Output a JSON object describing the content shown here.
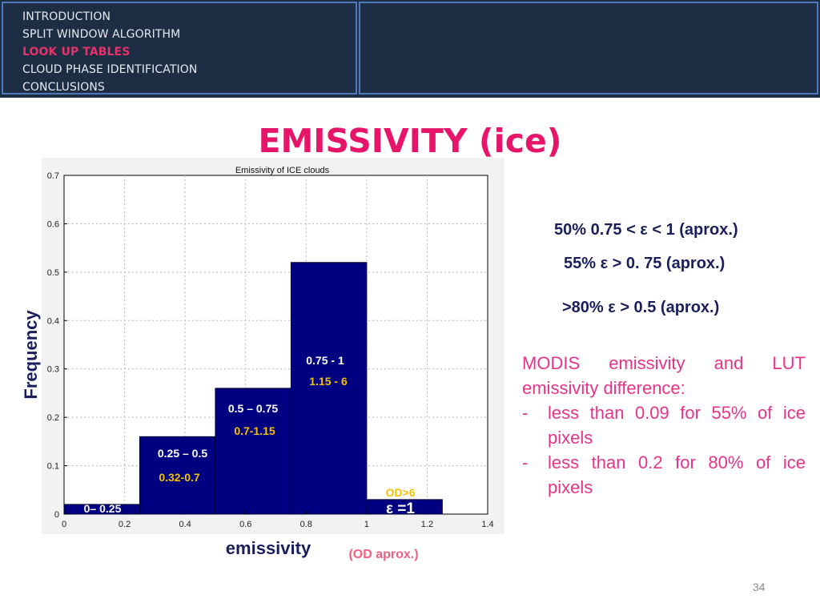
{
  "nav": {
    "items": [
      {
        "label": "INTRODUCTION",
        "active": false
      },
      {
        "label": "SPLIT WINDOW ALGORITHM",
        "active": false
      },
      {
        "label": "LOOK UP TABLES",
        "active": true
      },
      {
        "label": "CLOUD PHASE IDENTIFICATION",
        "active": false
      },
      {
        "label": "CONCLUSIONS",
        "active": false
      }
    ]
  },
  "slide": {
    "title": "EMISSIVITY (ice)",
    "page_number": "34"
  },
  "stats": [
    "50%  0.75 < ε < 1 (aprox.)",
    "55% ε > 0. 75 (aprox.)",
    ">80% ε > 0.5 (aprox.)"
  ],
  "modis": {
    "intro_line1": "MODIS emissivity and LUT",
    "intro_line2": "emissivity difference:",
    "bullets": [
      {
        "dash": "-",
        "text": "less than 0.09 for 55% of ice pixels"
      },
      {
        "dash": "-",
        "text": "less than 0.2 for 80% of ice pixels"
      }
    ]
  },
  "colors": {
    "title": "#e6156a",
    "nav_active": "#e8336a",
    "bar_fill": "#000080",
    "bar_label": "#ffffff",
    "od_label": "#f2c100",
    "stat_text": "#1a1f5c",
    "modis_text": "#e6338a"
  },
  "chart_data": {
    "type": "bar",
    "title": "Emissivity of ICE clouds",
    "xlabel": "emissivity",
    "ylabel": "Frequency",
    "xlim": [
      0,
      1.4
    ],
    "ylim": [
      0,
      0.7
    ],
    "x_ticks": [
      "0",
      "0.2",
      "0.4",
      "0.6",
      "0.8",
      "1",
      "1.2",
      "1.4"
    ],
    "y_ticks": [
      "0",
      "0.1",
      "0.2",
      "0.3",
      "0.4",
      "0.5",
      "0.6",
      "0.7"
    ],
    "grid": true,
    "bins": [
      {
        "x0": 0.0,
        "x1": 0.25,
        "value": 0.02,
        "label": "0– 0.25",
        "od": ""
      },
      {
        "x0": 0.25,
        "x1": 0.5,
        "value": 0.16,
        "label": "0.25 – 0.5",
        "od": "0.32-0.7"
      },
      {
        "x0": 0.5,
        "x1": 0.75,
        "value": 0.26,
        "label": "0.5 – 0.75",
        "od": "0.7-1.15"
      },
      {
        "x0": 0.75,
        "x1": 1.0,
        "value": 0.52,
        "label": "0.75 - 1",
        "od": "1.15 - 6"
      },
      {
        "x0": 1.0,
        "x1": 1.25,
        "value": 0.03,
        "label": "ε =1",
        "od": "OD>6"
      }
    ],
    "annotation": "(OD aprox.)"
  }
}
